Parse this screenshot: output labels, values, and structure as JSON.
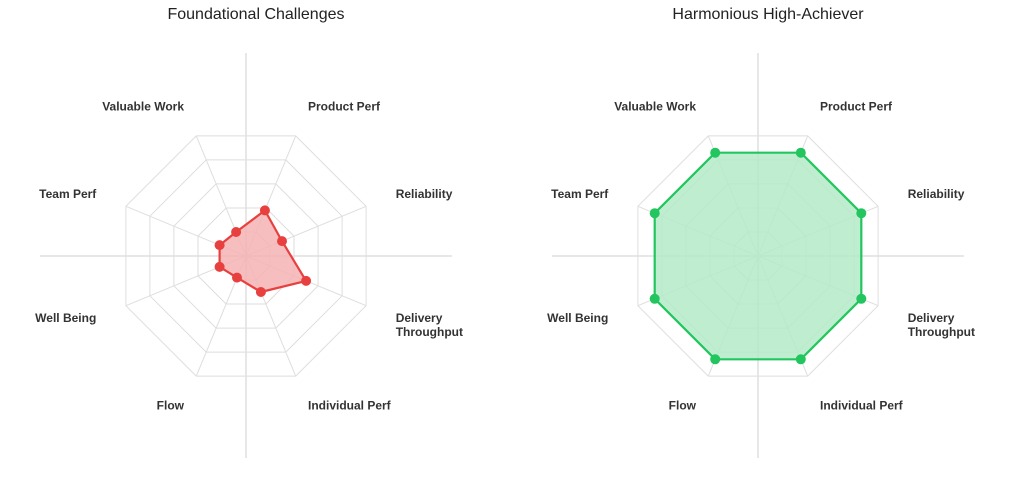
{
  "chart_data": [
    {
      "type": "radar",
      "title": "Foundational Challenges",
      "axes": [
        "Product Perf",
        "Reliability",
        "Delivery Throughput",
        "Individual Perf",
        "Flow",
        "Well Being",
        "Team Perf",
        "Valuable Work"
      ],
      "values": [
        1.9,
        1.5,
        2.5,
        1.5,
        0.9,
        1.1,
        1.1,
        1.0
      ],
      "rmax": 5,
      "rings": 5,
      "color": "#e8403f",
      "fill": "#f4b3b3",
      "grid": true
    },
    {
      "type": "radar",
      "title": "Harmonious High-Achiever",
      "axes": [
        "Product Perf",
        "Reliability",
        "Delivery Throughput",
        "Individual Perf",
        "Flow",
        "Well Being",
        "Team Perf",
        "Valuable Work"
      ],
      "values": [
        4.3,
        4.3,
        4.3,
        4.3,
        4.3,
        4.3,
        4.3,
        4.3
      ],
      "rmax": 5,
      "rings": 5,
      "color": "#22c55e",
      "fill": "#b3ebc7",
      "grid": true
    }
  ]
}
